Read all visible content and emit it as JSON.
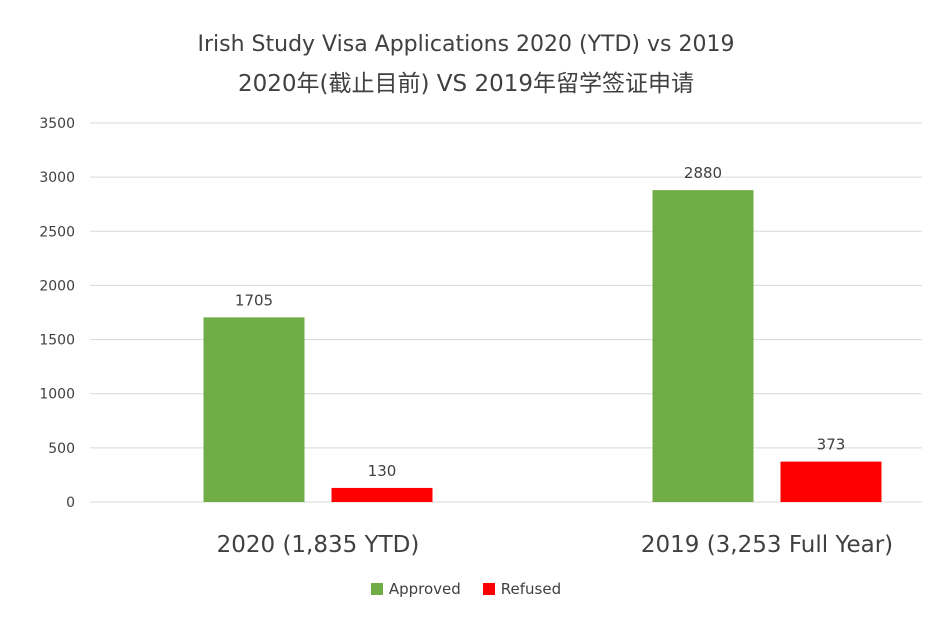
{
  "chart_data": {
    "type": "bar",
    "title": "Irish Study Visa Applications 2020 (YTD) vs 2019",
    "subtitle": "2020年(截止目前) VS 2019年留学签证申请",
    "categories": [
      "2020 (1,835  YTD)",
      "2019 (3,253 Full Year)"
    ],
    "series": [
      {
        "name": "Approved",
        "color": "#70ad47",
        "values": [
          1705,
          2880
        ]
      },
      {
        "name": "Refused",
        "color": "#ff0000",
        "values": [
          130,
          373
        ]
      }
    ],
    "ylim": [
      0,
      3500
    ],
    "yticks": [
      0,
      500,
      1000,
      1500,
      2000,
      2500,
      3000,
      3500
    ],
    "grid": true,
    "legend": "bottom"
  }
}
